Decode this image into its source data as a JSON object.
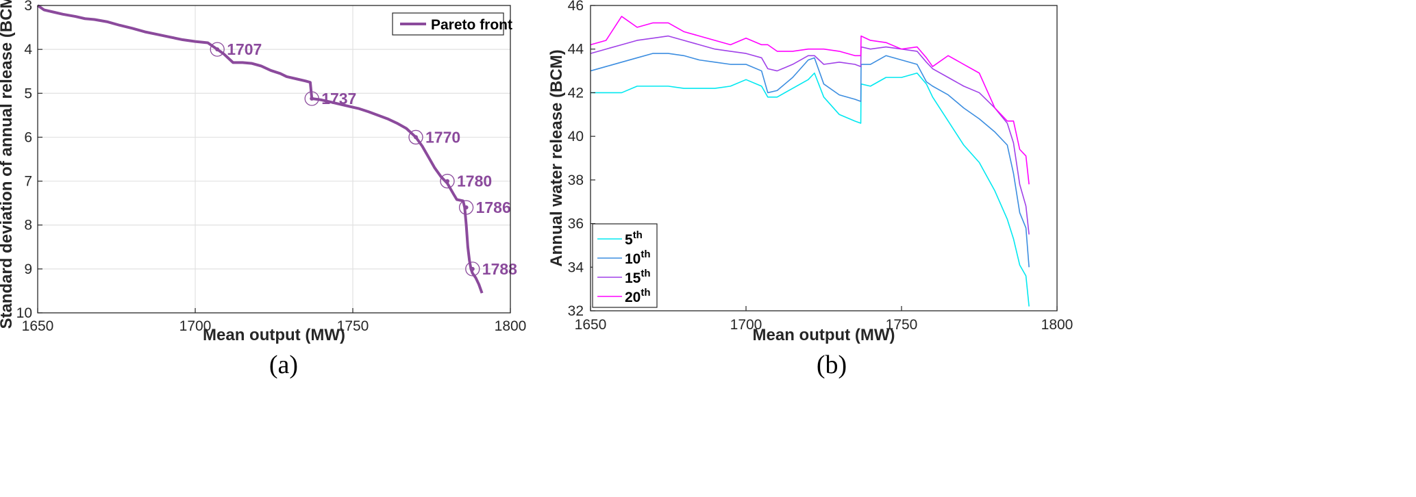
{
  "chart_data": [
    {
      "type": "line",
      "panel_label": "(a)",
      "xlabel": "Mean output (MW)",
      "ylabel": "Standard deviation of annual release (BCM)",
      "xlim": [
        1650,
        1800
      ],
      "ylim": [
        3,
        10
      ],
      "y_reversed": true,
      "xticks": [
        1650,
        1700,
        1750,
        1800
      ],
      "yticks": [
        3,
        4,
        5,
        6,
        7,
        8,
        9,
        10
      ],
      "grid": true,
      "legend_position": "top-right",
      "series": [
        {
          "name": "Pareto front",
          "color": "#8b4a9c",
          "x": [
            1650,
            1652,
            1655,
            1658,
            1662,
            1665,
            1668,
            1672,
            1676,
            1680,
            1684,
            1688,
            1692,
            1696,
            1700,
            1704,
            1707,
            1709,
            1712,
            1715,
            1718,
            1721,
            1724,
            1727,
            1729,
            1732,
            1735,
            1736.5,
            1737,
            1740,
            1743,
            1746,
            1749,
            1752,
            1755,
            1758,
            1761,
            1764,
            1767,
            1770,
            1772,
            1774,
            1776,
            1778,
            1780,
            1782,
            1783,
            1785,
            1785.5,
            1786,
            1786.5,
            1787,
            1787.5,
            1788,
            1789,
            1790,
            1791
          ],
          "y": [
            3.0,
            3.1,
            3.15,
            3.2,
            3.25,
            3.3,
            3.32,
            3.37,
            3.45,
            3.52,
            3.6,
            3.66,
            3.72,
            3.78,
            3.82,
            3.85,
            4.0,
            4.1,
            4.3,
            4.3,
            4.32,
            4.38,
            4.48,
            4.55,
            4.62,
            4.67,
            4.72,
            4.75,
            5.12,
            5.15,
            5.2,
            5.25,
            5.3,
            5.35,
            5.42,
            5.5,
            5.58,
            5.68,
            5.8,
            6.0,
            6.2,
            6.45,
            6.7,
            6.9,
            7.05,
            7.3,
            7.42,
            7.45,
            7.6,
            8.0,
            8.5,
            8.8,
            9.0,
            9.1,
            9.2,
            9.35,
            9.55
          ]
        }
      ],
      "annotations": [
        {
          "label": "1707",
          "x": 1707,
          "y": 4.0
        },
        {
          "label": "1737",
          "x": 1737,
          "y": 5.12
        },
        {
          "label": "1770",
          "x": 1770,
          "y": 6.0
        },
        {
          "label": "1780",
          "x": 1780,
          "y": 7.0
        },
        {
          "label": "1786",
          "x": 1786,
          "y": 7.6
        },
        {
          "label": "1788",
          "x": 1788,
          "y": 9.0
        }
      ]
    },
    {
      "type": "line",
      "panel_label": "(b)",
      "xlabel": "Mean output (MW)",
      "ylabel": "Annual water release (BCM)",
      "xlim": [
        1650,
        1800
      ],
      "ylim": [
        32,
        46
      ],
      "xticks": [
        1650,
        1700,
        1750,
        1800
      ],
      "yticks": [
        32,
        34,
        36,
        38,
        40,
        42,
        44,
        46
      ],
      "grid": false,
      "legend_position": "bottom-left",
      "x": [
        1650,
        1655,
        1660,
        1665,
        1670,
        1675,
        1680,
        1685,
        1690,
        1695,
        1700,
        1705,
        1707,
        1710,
        1715,
        1720,
        1722,
        1725,
        1730,
        1735,
        1736.9,
        1737,
        1740,
        1745,
        1750,
        1755,
        1758,
        1760,
        1765,
        1770,
        1775,
        1780,
        1784,
        1786,
        1788,
        1790,
        1791
      ],
      "series": [
        {
          "name": "5",
          "name_sup": "th",
          "color": "#00e8f0",
          "values": [
            42.0,
            42.0,
            42.0,
            42.3,
            42.3,
            42.3,
            42.2,
            42.2,
            42.2,
            42.3,
            42.6,
            42.3,
            41.8,
            41.8,
            42.2,
            42.6,
            42.9,
            41.8,
            41.0,
            40.7,
            40.6,
            42.4,
            42.3,
            42.7,
            42.7,
            42.9,
            42.4,
            41.8,
            40.7,
            39.6,
            38.8,
            37.5,
            36.2,
            35.3,
            34.1,
            33.6,
            32.2
          ]
        },
        {
          "name": "10",
          "name_sup": "th",
          "color": "#3b8de0",
          "values": [
            43.0,
            43.2,
            43.4,
            43.6,
            43.8,
            43.8,
            43.7,
            43.5,
            43.4,
            43.3,
            43.3,
            43.0,
            42.0,
            42.1,
            42.7,
            43.5,
            43.6,
            42.4,
            41.9,
            41.7,
            41.6,
            43.3,
            43.3,
            43.7,
            43.5,
            43.3,
            42.5,
            42.3,
            41.9,
            41.3,
            40.8,
            40.2,
            39.6,
            38.3,
            36.5,
            35.8,
            34.0
          ]
        },
        {
          "name": "15",
          "name_sup": "th",
          "color": "#a040e8",
          "values": [
            43.8,
            44.0,
            44.2,
            44.4,
            44.5,
            44.6,
            44.4,
            44.2,
            44.0,
            43.9,
            43.8,
            43.6,
            43.1,
            43.0,
            43.3,
            43.7,
            43.7,
            43.3,
            43.4,
            43.3,
            43.2,
            44.1,
            44.0,
            44.1,
            44.0,
            43.9,
            43.4,
            43.1,
            42.7,
            42.3,
            42.0,
            41.3,
            40.6,
            39.7,
            37.8,
            36.8,
            35.5
          ]
        },
        {
          "name": "20",
          "name_sup": "th",
          "color": "#ff00ff",
          "values": [
            44.2,
            44.4,
            45.5,
            45.0,
            45.2,
            45.2,
            44.8,
            44.6,
            44.4,
            44.2,
            44.5,
            44.2,
            44.2,
            43.9,
            43.9,
            44.0,
            44.0,
            44.0,
            43.9,
            43.7,
            43.7,
            44.6,
            44.4,
            44.3,
            44.0,
            44.1,
            43.6,
            43.2,
            43.7,
            43.3,
            42.9,
            41.3,
            40.7,
            40.7,
            39.4,
            39.1,
            37.8
          ]
        }
      ]
    }
  ]
}
